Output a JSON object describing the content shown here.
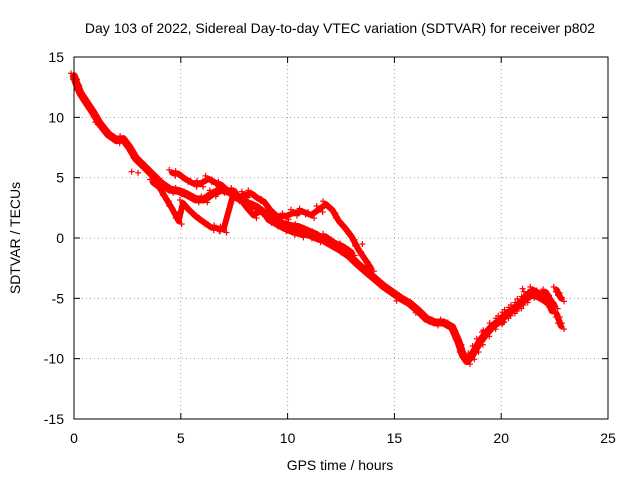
{
  "chart_data": {
    "type": "scatter",
    "title": "Day 103 of 2022, Sidereal Day-to-day VTEC variation (SDTVAR) for receiver p802",
    "xlabel": "GPS time / hours",
    "ylabel": "SDTVAR / TECUs",
    "xlim": [
      0,
      25
    ],
    "ylim": [
      -15,
      15
    ],
    "xticks": [
      0,
      5,
      10,
      15,
      20,
      25
    ],
    "yticks": [
      -15,
      -10,
      -5,
      0,
      5,
      10,
      15
    ],
    "grid": true,
    "marker": "+",
    "color": "#ff0000",
    "series": [
      {
        "name": "main trace",
        "points": [
          [
            0.0,
            13.4
          ],
          [
            0.1,
            12.9
          ],
          [
            0.3,
            12.0
          ],
          [
            0.6,
            11.2
          ],
          [
            0.9,
            10.4
          ],
          [
            1.2,
            9.5
          ],
          [
            1.6,
            8.6
          ],
          [
            2.0,
            8.1
          ],
          [
            2.3,
            8.2
          ],
          [
            2.6,
            7.5
          ],
          [
            2.9,
            6.6
          ],
          [
            3.3,
            5.9
          ],
          [
            3.7,
            5.2
          ],
          [
            4.1,
            4.5
          ],
          [
            4.5,
            4.0
          ],
          [
            4.9,
            3.9
          ],
          [
            5.3,
            3.6
          ],
          [
            5.7,
            3.2
          ],
          [
            6.1,
            3.2
          ],
          [
            6.5,
            3.7
          ],
          [
            6.9,
            4.0
          ],
          [
            7.3,
            3.8
          ],
          [
            7.7,
            3.3
          ],
          [
            8.1,
            2.9
          ],
          [
            8.5,
            2.6
          ],
          [
            8.9,
            2.1
          ],
          [
            9.3,
            1.6
          ],
          [
            9.7,
            1.2
          ],
          [
            10.1,
            1.0
          ],
          [
            10.5,
            0.9
          ],
          [
            10.9,
            0.6
          ],
          [
            11.3,
            0.3
          ],
          [
            11.7,
            -0.2
          ],
          [
            12.1,
            -0.6
          ],
          [
            12.5,
            -1.0
          ],
          [
            12.9,
            -1.5
          ],
          [
            13.3,
            -2.2
          ],
          [
            13.7,
            -2.8
          ],
          [
            14.1,
            -3.4
          ],
          [
            14.5,
            -4.0
          ],
          [
            14.9,
            -4.5
          ],
          [
            15.3,
            -5.0
          ],
          [
            15.7,
            -5.4
          ],
          [
            16.1,
            -6.0
          ],
          [
            16.5,
            -6.7
          ],
          [
            16.9,
            -7.0
          ],
          [
            17.3,
            -7.0
          ],
          [
            17.7,
            -7.4
          ],
          [
            18.0,
            -8.6
          ],
          [
            18.2,
            -9.7
          ],
          [
            18.4,
            -10.2
          ],
          [
            18.6,
            -9.8
          ],
          [
            18.8,
            -9.2
          ],
          [
            19.0,
            -8.6
          ],
          [
            19.3,
            -7.9
          ],
          [
            19.6,
            -7.3
          ],
          [
            19.9,
            -6.9
          ],
          [
            20.2,
            -6.4
          ],
          [
            20.5,
            -6.0
          ],
          [
            20.8,
            -5.6
          ],
          [
            21.1,
            -5.1
          ],
          [
            21.4,
            -4.7
          ],
          [
            21.7,
            -4.8
          ],
          [
            22.0,
            -5.1
          ],
          [
            22.3,
            -5.5
          ],
          [
            22.4,
            -6.0
          ]
        ]
      },
      {
        "name": "upper branch",
        "points": [
          [
            4.6,
            5.4
          ],
          [
            4.9,
            5.3
          ],
          [
            5.2,
            4.9
          ],
          [
            5.6,
            4.5
          ],
          [
            5.9,
            4.5
          ],
          [
            6.3,
            4.9
          ],
          [
            6.6,
            4.6
          ],
          [
            6.9,
            4.4
          ],
          [
            7.2,
            3.9
          ],
          [
            7.6,
            3.3
          ],
          [
            8.0,
            3.6
          ],
          [
            8.3,
            3.7
          ],
          [
            8.6,
            3.3
          ],
          [
            8.9,
            3.0
          ],
          [
            9.2,
            2.3
          ],
          [
            9.5,
            1.8
          ],
          [
            9.9,
            1.8
          ],
          [
            10.3,
            2.1
          ],
          [
            10.7,
            2.2
          ],
          [
            11.1,
            1.9
          ],
          [
            11.5,
            2.4
          ],
          [
            11.8,
            2.8
          ],
          [
            12.1,
            2.3
          ],
          [
            12.4,
            1.4
          ],
          [
            12.7,
            0.8
          ],
          [
            13.0,
            0.1
          ],
          [
            13.3,
            -0.9
          ],
          [
            13.6,
            -1.7
          ],
          [
            13.9,
            -2.5
          ]
        ]
      },
      {
        "name": "lower branch",
        "points": [
          [
            3.7,
            4.6
          ],
          [
            4.0,
            4.2
          ],
          [
            4.3,
            3.3
          ],
          [
            4.6,
            2.4
          ],
          [
            4.9,
            1.4
          ],
          [
            5.1,
            2.9
          ],
          [
            5.4,
            2.3
          ],
          [
            5.7,
            1.8
          ],
          [
            6.0,
            1.4
          ],
          [
            6.4,
            0.9
          ],
          [
            6.7,
            0.8
          ],
          [
            7.0,
            0.7
          ],
          [
            7.5,
            3.9
          ],
          [
            7.8,
            3.2
          ],
          [
            8.1,
            2.5
          ],
          [
            8.4,
            1.9
          ],
          [
            8.8,
            2.3
          ],
          [
            9.1,
            1.5
          ],
          [
            9.4,
            1.2
          ],
          [
            9.8,
            0.8
          ],
          [
            10.2,
            0.5
          ],
          [
            10.6,
            0.3
          ],
          [
            11.0,
            0.2
          ],
          [
            11.4,
            -0.1
          ],
          [
            11.8,
            0.1
          ],
          [
            12.2,
            -0.4
          ],
          [
            12.6,
            -0.7
          ],
          [
            13.0,
            -1.2
          ]
        ]
      },
      {
        "name": "late segments",
        "points": [
          [
            20.0,
            -6.7
          ],
          [
            20.3,
            -6.2
          ],
          [
            20.6,
            -5.8
          ],
          [
            20.9,
            -5.3
          ],
          [
            21.2,
            -4.7
          ],
          [
            21.5,
            -4.3
          ],
          [
            21.8,
            -4.6
          ],
          [
            22.1,
            -4.5
          ],
          [
            22.3,
            -5.1
          ],
          [
            22.5,
            -5.6
          ]
        ]
      },
      {
        "name": "end segment",
        "points": [
          [
            22.6,
            -6.3
          ],
          [
            22.7,
            -6.8
          ],
          [
            22.8,
            -7.3
          ]
        ]
      },
      {
        "name": "end segment 2",
        "points": [
          [
            22.6,
            -4.3
          ],
          [
            22.7,
            -4.7
          ],
          [
            22.8,
            -5.0
          ]
        ]
      }
    ],
    "scatter_points": [
      [
        2.7,
        5.5
      ],
      [
        3.0,
        5.4
      ],
      [
        2.8,
        6.6
      ],
      [
        0.8,
        10.6
      ],
      [
        1.0,
        9.6
      ],
      [
        6.8,
        0.6
      ],
      [
        13.5,
        -0.5
      ],
      [
        12.5,
        -1.2
      ],
      [
        21.0,
        -4.2
      ],
      [
        20.1,
        -7.0
      ],
      [
        19.1,
        -7.8
      ],
      [
        17.5,
        -7.0
      ],
      [
        16.0,
        -6.2
      ],
      [
        15.1,
        -5.2
      ],
      [
        14.6,
        -4.2
      ]
    ]
  }
}
